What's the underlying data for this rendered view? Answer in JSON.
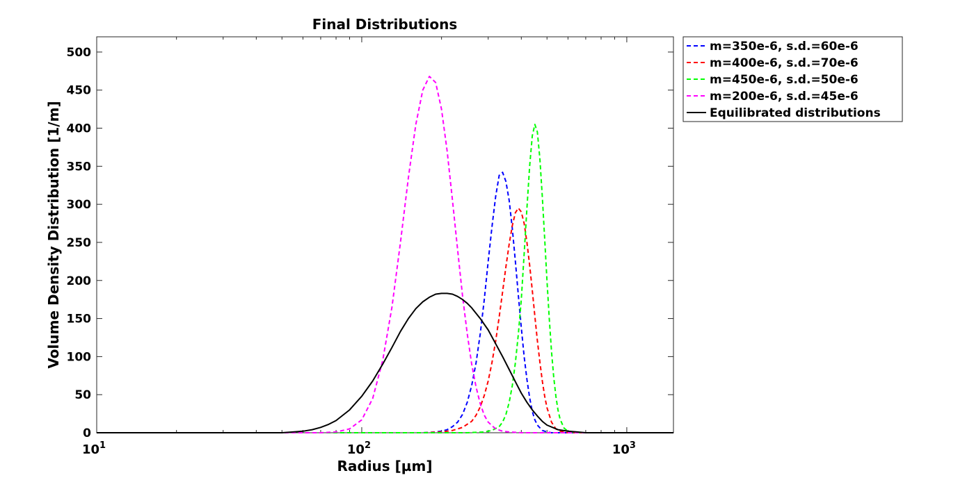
{
  "chart_data": {
    "type": "line",
    "title": "Final Distributions",
    "xlabel": "Radius [µm]",
    "ylabel": "Volume Density Distribution [1/m]",
    "xscale": "log",
    "xlim": [
      10,
      1500
    ],
    "ylim": [
      0,
      520
    ],
    "x_ticks": [
      {
        "value": 10,
        "base": "10",
        "exp": "1"
      },
      {
        "value": 100,
        "base": "10",
        "exp": "2"
      },
      {
        "value": 1000,
        "base": "10",
        "exp": "3"
      }
    ],
    "y_ticks": [
      0,
      50,
      100,
      150,
      200,
      250,
      300,
      350,
      400,
      450,
      500
    ],
    "grid": false,
    "legend_position": "outside-top-right",
    "series": [
      {
        "name": "m=350e-6, s.d.=60e-6",
        "color": "#0000ff",
        "dash": "dashed",
        "x": [
          10,
          150,
          170,
          190,
          200,
          210,
          220,
          230,
          240,
          250,
          260,
          270,
          280,
          290,
          300,
          310,
          320,
          330,
          340,
          350,
          360,
          370,
          380,
          390,
          400,
          410,
          420,
          430,
          440,
          450,
          460,
          480,
          500,
          520,
          550,
          600,
          700,
          1500
        ],
        "y": [
          0,
          0,
          0,
          1,
          2,
          4,
          8,
          14,
          24,
          40,
          62,
          92,
          130,
          175,
          225,
          270,
          310,
          338,
          342,
          330,
          305,
          268,
          225,
          180,
          138,
          100,
          70,
          46,
          28,
          17,
          10,
          3,
          1,
          0,
          0,
          0,
          0,
          0
        ]
      },
      {
        "name": "m=400e-6, s.d.=70e-6",
        "color": "#ff0000",
        "dash": "dashed",
        "x": [
          10,
          170,
          200,
          220,
          240,
          260,
          270,
          280,
          290,
          300,
          310,
          320,
          330,
          340,
          350,
          360,
          370,
          380,
          390,
          400,
          410,
          420,
          430,
          440,
          450,
          460,
          470,
          480,
          490,
          500,
          520,
          540,
          560,
          600,
          700,
          1500
        ],
        "y": [
          0,
          0,
          1,
          3,
          7,
          15,
          23,
          34,
          49,
          68,
          92,
          120,
          152,
          185,
          218,
          248,
          272,
          289,
          295,
          290,
          275,
          250,
          220,
          187,
          153,
          121,
          93,
          68,
          48,
          33,
          14,
          5,
          2,
          0,
          0,
          0
        ]
      },
      {
        "name": "m=450e-6, s.d.=50e-6",
        "color": "#00ff00",
        "dash": "dashed",
        "x": [
          10,
          250,
          290,
          310,
          330,
          340,
          350,
          360,
          370,
          380,
          390,
          400,
          410,
          420,
          430,
          440,
          450,
          460,
          470,
          480,
          490,
          500,
          510,
          520,
          530,
          540,
          550,
          560,
          580,
          600,
          640,
          700,
          1500
        ],
        "y": [
          0,
          0,
          1,
          3,
          8,
          14,
          24,
          40,
          62,
          92,
          130,
          175,
          235,
          295,
          350,
          390,
          405,
          395,
          360,
          310,
          255,
          200,
          150,
          107,
          73,
          48,
          30,
          18,
          6,
          2,
          0,
          0,
          0
        ]
      },
      {
        "name": "m=200e-6, s.d.=45e-6",
        "color": "#ff00ff",
        "dash": "dashed",
        "x": [
          10,
          60,
          70,
          80,
          90,
          100,
          110,
          120,
          130,
          140,
          150,
          160,
          170,
          180,
          190,
          200,
          210,
          220,
          230,
          240,
          250,
          260,
          270,
          280,
          290,
          300,
          320,
          340,
          360,
          400,
          1500
        ],
        "y": [
          0,
          0,
          0,
          1,
          5,
          17,
          45,
          95,
          165,
          250,
          335,
          405,
          450,
          468,
          460,
          425,
          370,
          305,
          240,
          180,
          130,
          90,
          60,
          38,
          23,
          14,
          5,
          2,
          1,
          0,
          0
        ]
      },
      {
        "name": "Equilibrated distributions",
        "color": "#000000",
        "dash": "solid",
        "x": [
          10,
          40,
          50,
          55,
          60,
          65,
          70,
          75,
          80,
          90,
          100,
          110,
          120,
          130,
          140,
          150,
          160,
          170,
          180,
          190,
          200,
          210,
          220,
          230,
          240,
          250,
          260,
          280,
          300,
          320,
          340,
          360,
          380,
          400,
          420,
          440,
          460,
          480,
          500,
          550,
          600,
          650,
          700,
          800,
          1000,
          1500
        ],
        "y": [
          0,
          0,
          0,
          1,
          2,
          4,
          7,
          11,
          16,
          30,
          48,
          68,
          90,
          112,
          133,
          150,
          163,
          172,
          178,
          182,
          183,
          183,
          182,
          179,
          175,
          170,
          164,
          150,
          135,
          117,
          100,
          83,
          67,
          52,
          40,
          30,
          22,
          15,
          10,
          4,
          2,
          1,
          0,
          0,
          0,
          0
        ]
      }
    ]
  }
}
